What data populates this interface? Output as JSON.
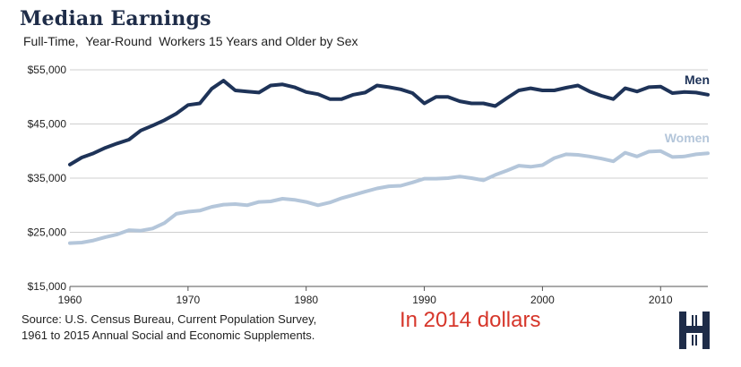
{
  "header": {
    "title": "Median Earnings",
    "subtitle": "Full-Time,  Year-Round  Workers 15 Years and Older by Sex"
  },
  "footer": {
    "source_line1": "Source: U.S. Census Bureau, Current Population Survey,",
    "source_line2": "1961 to 2015 Annual Social and Economic Supplements.",
    "note": "In 2014 dollars"
  },
  "colors": {
    "men": "#1e3358",
    "women": "#b4c6da",
    "note": "#d6362a"
  },
  "logo": {
    "icon": "hamilton-h-logo-icon"
  },
  "chart_data": {
    "type": "line",
    "title": "Median Earnings",
    "subtitle": "Full-Time,  Year-Round  Workers 15 Years and Older by Sex",
    "xlabel": "",
    "ylabel": "",
    "xlim": [
      1960,
      2014
    ],
    "ylim": [
      15000,
      55000
    ],
    "x_ticks": [
      1960,
      1970,
      1980,
      1990,
      2000,
      2010
    ],
    "y_ticks": [
      15000,
      25000,
      35000,
      45000,
      55000
    ],
    "y_tick_labels": [
      "$15,000",
      "$25,000",
      "$35,000",
      "$45,000",
      "$55,000"
    ],
    "grid": "horizontal",
    "x": [
      1960,
      1961,
      1962,
      1963,
      1964,
      1965,
      1966,
      1967,
      1968,
      1969,
      1970,
      1971,
      1972,
      1973,
      1974,
      1975,
      1976,
      1977,
      1978,
      1979,
      1980,
      1981,
      1982,
      1983,
      1984,
      1985,
      1986,
      1987,
      1988,
      1989,
      1990,
      1991,
      1992,
      1993,
      1994,
      1995,
      1996,
      1997,
      1998,
      1999,
      2000,
      2001,
      2002,
      2003,
      2004,
      2005,
      2006,
      2007,
      2008,
      2009,
      2010,
      2011,
      2012,
      2013,
      2014
    ],
    "series": [
      {
        "name": "Men",
        "label_position": "end-above",
        "values": [
          37500,
          38800,
          39600,
          40600,
          41400,
          42100,
          43800,
          44700,
          45700,
          46900,
          48500,
          48800,
          51500,
          53000,
          51200,
          51000,
          50800,
          52100,
          52300,
          51800,
          50900,
          50500,
          49600,
          49600,
          50400,
          50800,
          52100,
          51800,
          51400,
          50700,
          48800,
          50000,
          50000,
          49200,
          48800,
          48800,
          48300,
          49800,
          51200,
          51600,
          51200,
          51200,
          51700,
          52100,
          51000,
          50200,
          49600,
          51600,
          51000,
          51800,
          51900,
          50700,
          50900,
          50800,
          50400
        ]
      },
      {
        "name": "Women",
        "label_position": "end-above",
        "values": [
          23000,
          23100,
          23500,
          24100,
          24600,
          25400,
          25300,
          25700,
          26700,
          28400,
          28800,
          29000,
          29700,
          30100,
          30200,
          30000,
          30600,
          30700,
          31200,
          31000,
          30600,
          30000,
          30500,
          31300,
          31900,
          32500,
          33100,
          33500,
          33600,
          34200,
          34900,
          34900,
          35000,
          35300,
          35000,
          34600,
          35600,
          36400,
          37300,
          37100,
          37400,
          38700,
          39400,
          39300,
          39000,
          38600,
          38100,
          39700,
          39000,
          39900,
          40000,
          38900,
          39000,
          39400,
          39600
        ]
      }
    ]
  }
}
